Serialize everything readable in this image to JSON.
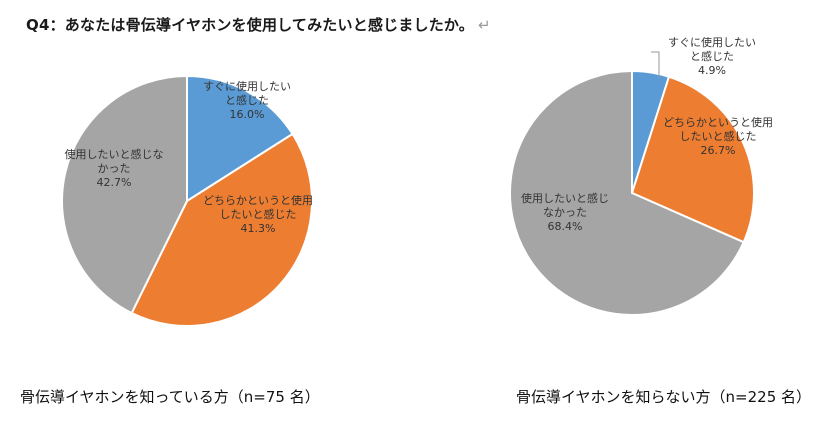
{
  "title": "Q4：あなたは骨伝導イヤホンを使用してみたいと感じましたか。",
  "title_return_mark": "↵",
  "colors": {
    "blue": "#5b9bd5",
    "orange": "#ed7d31",
    "gray": "#a5a5a5"
  },
  "chart_data": [
    {
      "type": "pie",
      "caption": "骨伝導イヤホンを知っている方（n=75 名）",
      "slices": [
        {
          "label_lines": [
            "すぐに使用したい",
            "と感じた"
          ],
          "pct_text": "16.0%",
          "value": 16.0,
          "color": "#5b9bd5"
        },
        {
          "label_lines": [
            "どちらかというと使用",
            "したいと感じた"
          ],
          "pct_text": "41.3%",
          "value": 41.3,
          "color": "#ed7d31"
        },
        {
          "label_lines": [
            "使用したいと感じな",
            "かった"
          ],
          "pct_text": "42.7%",
          "value": 42.7,
          "color": "#a5a5a5"
        }
      ]
    },
    {
      "type": "pie",
      "caption": "骨伝導イヤホンを知らない方（n=225 名）",
      "slices": [
        {
          "label_lines": [
            "すぐに使用したい",
            "と感じた"
          ],
          "pct_text": "4.9%",
          "value": 4.9,
          "color": "#5b9bd5"
        },
        {
          "label_lines": [
            "どちらかというと使用",
            "したいと感じた"
          ],
          "pct_text": "26.7%",
          "value": 26.7,
          "color": "#ed7d31"
        },
        {
          "label_lines": [
            "使用したいと感じ",
            "なかった"
          ],
          "pct_text": "68.4%",
          "value": 68.4,
          "color": "#a5a5a5"
        }
      ]
    }
  ]
}
